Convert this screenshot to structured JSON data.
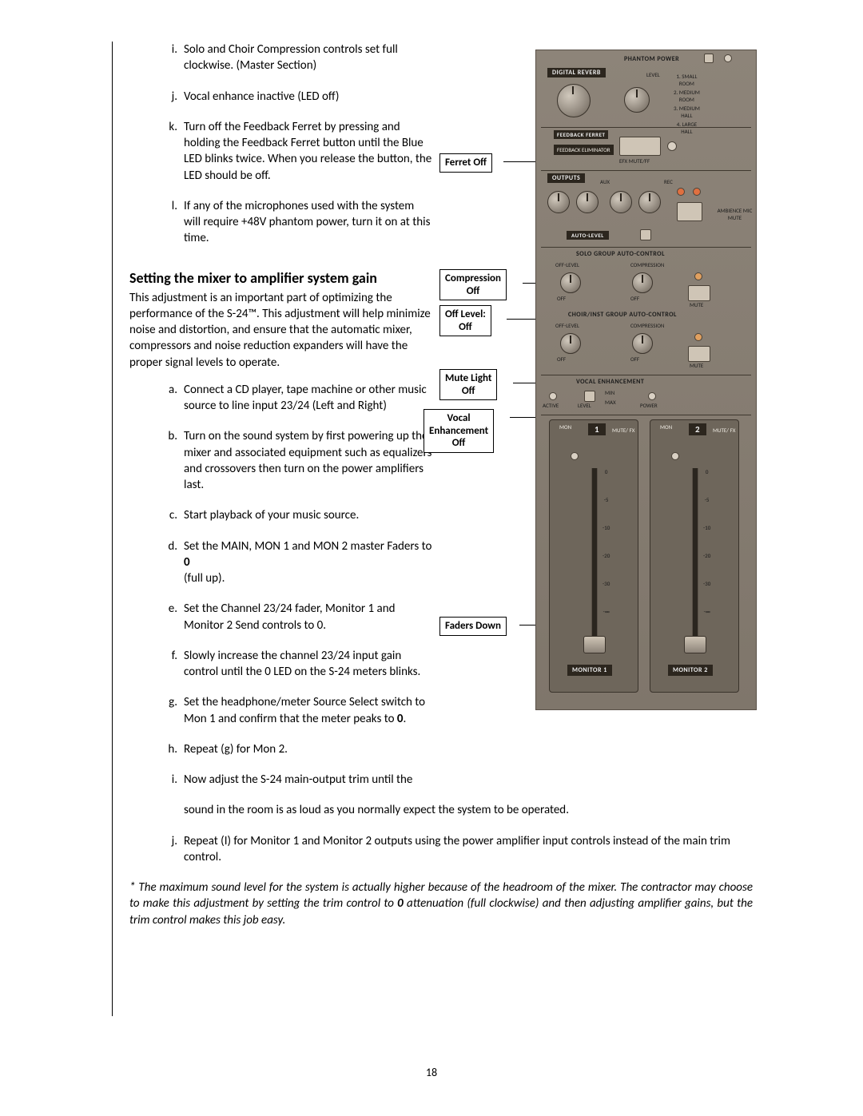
{
  "page_number": "18",
  "list1": [
    {
      "m": "i.",
      "t": "Solo and Choir Compression controls set full clockwise. (Master Section)"
    },
    {
      "m": "j.",
      "t": "Vocal enhance inactive (LED off)"
    },
    {
      "m": "k.",
      "t": "Turn off the Feedback Ferret by pressing and holding the Feedback Ferret button until the Blue LED blinks twice. When you release the button, the LED should be off."
    },
    {
      "m": "l.",
      "t": "If any of the microphones used with the system will require +48V phantom power, turn it on at this time."
    }
  ],
  "section_title": "Setting the mixer to amplifier system gain",
  "intro": "This adjustment is an important part of optimizing the performance of the S-24™. This adjustment will help minimize noise and distortion, and ensure that the automatic mixer, compressors and noise reduction expanders will have the proper signal levels to operate.",
  "list2_narrow": [
    {
      "m": "a.",
      "t": "Connect a CD player, tape machine or other music source to line input 23/24 (Left and Right)"
    },
    {
      "m": "b.",
      "t": "Turn on the sound system by first powering up the mixer and associated equipment such as equalizers and crossovers then turn on the power amplifiers last."
    },
    {
      "m": "c.",
      "t": "Start playback of your music source."
    },
    {
      "m": "d.",
      "t": "Set the MAIN, MON 1 and MON 2 master Faders to <b>0</b>\n(full up)."
    },
    {
      "m": "e.",
      "t": "Set the Channel 23/24 fader, Monitor 1 and Monitor 2 Send controls to 0."
    },
    {
      "m": "f.",
      "t": "Slowly increase the channel 23/24 input gain control until the 0 LED on the S-24 meters blinks."
    },
    {
      "m": "g.",
      "t": "Set the headphone/meter Source Select switch to Mon 1 and confirm that the meter peaks to <b>0</b>."
    },
    {
      "m": "h.",
      "t": "Repeat (g) for Mon 2."
    },
    {
      "m": "i.",
      "t": "Now adjust the S-24 main-output trim until the"
    }
  ],
  "continuation_i": "sound in the room is as loud as you normally expect the system to be operated.",
  "list2_wide": [
    {
      "m": "j.",
      "t": "Repeat (I) for Monitor 1 and Monitor 2 outputs using the power amplifier input controls instead of the main trim control."
    }
  ],
  "footnote": "* The maximum sound level for the system is actually higher because of the headroom of the mixer. The contractor may choose to make this adjustment by setting the trim control to <b>0</b> attenuation (full clockwise) and then adjusting amplifier gains, but the trim control makes this job easy.",
  "labels": {
    "ferret": "Ferret Off",
    "compression": "Compression\nOff",
    "offlevel": "Off Level:\nOff",
    "mute": "Mute Light\nOff",
    "vocal": "Vocal\nEnhancement\nOff",
    "faders": "Faders Down"
  },
  "panel": {
    "phantom": "PHANTOM POWER",
    "reverb": "DIGITAL REVERB",
    "level": "LEVEL",
    "rooms": [
      "1. SMALL\nROOM",
      "2. MEDIUM\nROOM",
      "3. MEDIUM\nHALL",
      "4. LARGE\nHALL"
    ],
    "feedback_ferret": "FEEDBACK FERRET",
    "feedback_elim": "FEEDBACK\nELIMINATOR",
    "efx_mute": "EFX MUTE/FF",
    "outputs": "OUTPUTS",
    "aux": "AUX",
    "rec": "REC",
    "ambience": "AMBIENCE\nMIC\nMUTE",
    "auto_level": "AUTO-LEVEL",
    "solo_group": "SOLO GROUP AUTO-CONTROL",
    "off_level": "OFF-LEVEL",
    "compression": "COMPRESSION",
    "choir_group": "CHOIR/INST GROUP AUTO-CONTROL",
    "vocal_enh": "VOCAL ENHANCEMENT",
    "active": "ACTIVE",
    "level2": "LEVEL",
    "min": "MIN",
    "max": "MAX",
    "power": "POWER",
    "mon": "MON",
    "mute_fx": "MUTE/\nFX",
    "monitor1": "MONITOR\n1",
    "monitor2": "MONITOR\n2",
    "off": "OFF",
    "mute": "MUTE",
    "scale": [
      "0",
      "-5",
      "-10",
      "-20",
      "-30",
      "-∞"
    ]
  }
}
